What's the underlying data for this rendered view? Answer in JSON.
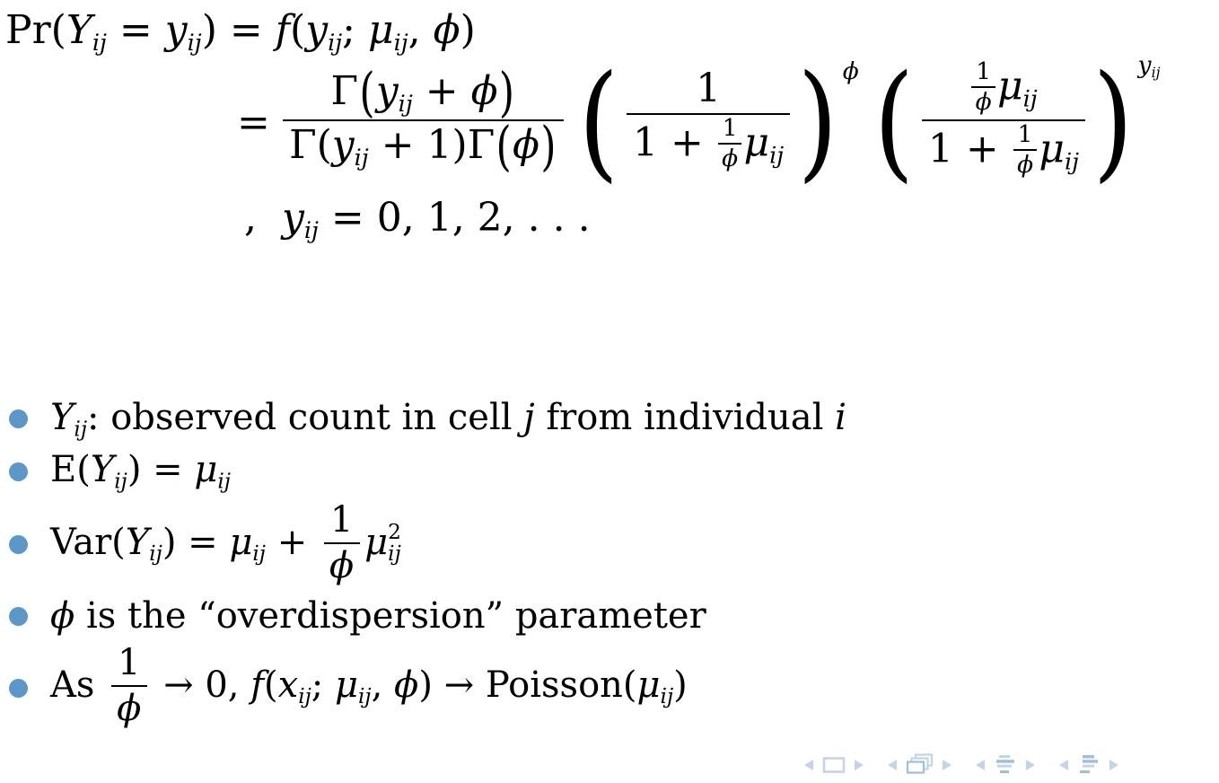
{
  "colors": {
    "background": "#ffffff",
    "text": "#000000",
    "bullet": "#5d97c8",
    "nav_light": "#c2d4e9",
    "nav_dark": "#9dbfdd"
  },
  "equation": {
    "line1": [
      {
        "k": "rm",
        "v": "Pr("
      },
      {
        "k": "it",
        "v": "Y"
      },
      {
        "k": "sub",
        "v": "ij"
      },
      {
        "k": "rm",
        "v": " = "
      },
      {
        "k": "it",
        "v": "y"
      },
      {
        "k": "sub",
        "v": "ij"
      },
      {
        "k": "rm",
        "v": ") = "
      },
      {
        "k": "it",
        "v": "f"
      },
      {
        "k": "rm",
        "v": "("
      },
      {
        "k": "it",
        "v": "y"
      },
      {
        "k": "sub",
        "v": "ij"
      },
      {
        "k": "rm",
        "v": "; "
      },
      {
        "k": "it",
        "v": "μ"
      },
      {
        "k": "sub",
        "v": "ij"
      },
      {
        "k": "rm",
        "v": ", "
      },
      {
        "k": "it",
        "v": "ϕ"
      },
      {
        "k": "rm",
        "v": ")"
      }
    ],
    "line2": [
      {
        "k": "rm",
        "v": "="
      },
      {
        "k": "frac",
        "n": [
          {
            "k": "rm",
            "v": "Γ"
          },
          {
            "k": "bp",
            "v": "("
          },
          {
            "k": "it",
            "v": "y"
          },
          {
            "k": "sub",
            "v": "ij"
          },
          {
            "k": "rm",
            "v": " + "
          },
          {
            "k": "it",
            "v": "ϕ"
          },
          {
            "k": "bp",
            "v": ")"
          }
        ],
        "d": [
          {
            "k": "rm",
            "v": "Γ("
          },
          {
            "k": "it",
            "v": "y"
          },
          {
            "k": "sub",
            "v": "ij"
          },
          {
            "k": "rm",
            "v": " + 1)Γ"
          },
          {
            "k": "bp",
            "v": "("
          },
          {
            "k": "it",
            "v": "ϕ"
          },
          {
            "k": "bp",
            "v": ")"
          }
        ]
      },
      {
        "k": "paren",
        "c": [
          {
            "k": "frac",
            "n": [
              {
                "k": "rm",
                "v": "1"
              }
            ],
            "d": [
              {
                "k": "rm",
                "v": "1 + "
              },
              {
                "k": "sfrac",
                "n": [
                  {
                    "k": "rm",
                    "v": "1"
                  }
                ],
                "d": [
                  {
                    "k": "it",
                    "v": "ϕ"
                  }
                ]
              },
              {
                "k": "it",
                "v": "μ"
              },
              {
                "k": "sub",
                "v": "ij"
              }
            ]
          }
        ],
        "sup": [
          {
            "k": "it",
            "v": "ϕ"
          }
        ]
      },
      {
        "k": "paren",
        "c": [
          {
            "k": "frac",
            "n": [
              {
                "k": "sfrac",
                "n": [
                  {
                    "k": "rm",
                    "v": "1"
                  }
                ],
                "d": [
                  {
                    "k": "it",
                    "v": "ϕ"
                  }
                ]
              },
              {
                "k": "it",
                "v": "μ"
              },
              {
                "k": "sub",
                "v": "ij"
              }
            ],
            "d": [
              {
                "k": "rm",
                "v": "1 + "
              },
              {
                "k": "sfrac",
                "n": [
                  {
                    "k": "rm",
                    "v": "1"
                  }
                ],
                "d": [
                  {
                    "k": "it",
                    "v": "ϕ"
                  }
                ]
              },
              {
                "k": "it",
                "v": "μ"
              },
              {
                "k": "sub",
                "v": "ij"
              }
            ]
          }
        ],
        "sup": [
          {
            "k": "it",
            "v": "y"
          },
          {
            "k": "sub",
            "v": "ij"
          }
        ]
      }
    ],
    "line3": [
      {
        "k": "rm",
        "v": ",  "
      },
      {
        "k": "it",
        "v": "y"
      },
      {
        "k": "sub",
        "v": "ij"
      },
      {
        "k": "rm",
        "v": " = 0, 1, 2, . . ."
      }
    ]
  },
  "bullets": [
    [
      {
        "k": "it",
        "v": "Y"
      },
      {
        "k": "sub",
        "v": "ij"
      },
      {
        "k": "rm",
        "v": ": observed count in cell "
      },
      {
        "k": "it",
        "v": "j"
      },
      {
        "k": "rm",
        "v": " from individual "
      },
      {
        "k": "it",
        "v": "i"
      }
    ],
    [
      {
        "k": "rm",
        "v": "E("
      },
      {
        "k": "it",
        "v": "Y"
      },
      {
        "k": "sub",
        "v": "ij"
      },
      {
        "k": "rm",
        "v": ") = "
      },
      {
        "k": "it",
        "v": "μ"
      },
      {
        "k": "sub",
        "v": "ij"
      }
    ],
    [
      {
        "k": "rm",
        "v": "Var("
      },
      {
        "k": "it",
        "v": "Y"
      },
      {
        "k": "sub",
        "v": "ij"
      },
      {
        "k": "rm",
        "v": ") = "
      },
      {
        "k": "it",
        "v": "μ"
      },
      {
        "k": "sub",
        "v": "ij"
      },
      {
        "k": "rm",
        "v": " + "
      },
      {
        "k": "frac",
        "n": [
          {
            "k": "rm",
            "v": "1"
          }
        ],
        "d": [
          {
            "k": "it",
            "v": "ϕ"
          }
        ]
      },
      {
        "k": "it",
        "v": "μ"
      },
      {
        "k": "supsub",
        "sup": "2",
        "sub": "ij"
      }
    ],
    [
      {
        "k": "it",
        "v": "ϕ"
      },
      {
        "k": "rm",
        "v": " is the “overdispersion” parameter"
      }
    ],
    [
      {
        "k": "rm",
        "v": "As "
      },
      {
        "k": "frac",
        "n": [
          {
            "k": "rm",
            "v": "1"
          }
        ],
        "d": [
          {
            "k": "it",
            "v": "ϕ"
          }
        ]
      },
      {
        "k": "rm",
        "v": " → 0, "
      },
      {
        "k": "it",
        "v": "f"
      },
      {
        "k": "rm",
        "v": "("
      },
      {
        "k": "it",
        "v": "x"
      },
      {
        "k": "sub",
        "v": "ij"
      },
      {
        "k": "rm",
        "v": "; "
      },
      {
        "k": "it",
        "v": "μ"
      },
      {
        "k": "sub",
        "v": "ij"
      },
      {
        "k": "rm",
        "v": ", "
      },
      {
        "k": "it",
        "v": "ϕ"
      },
      {
        "k": "rm",
        "v": ") → Poisson("
      },
      {
        "k": "it",
        "v": "μ"
      },
      {
        "k": "sub",
        "v": "ij"
      },
      {
        "k": "rm",
        "v": ")"
      }
    ]
  ],
  "nav": {
    "groups": [
      "slide-navigation",
      "frame-navigation",
      "section-navigation",
      "subsection-navigation"
    ]
  }
}
